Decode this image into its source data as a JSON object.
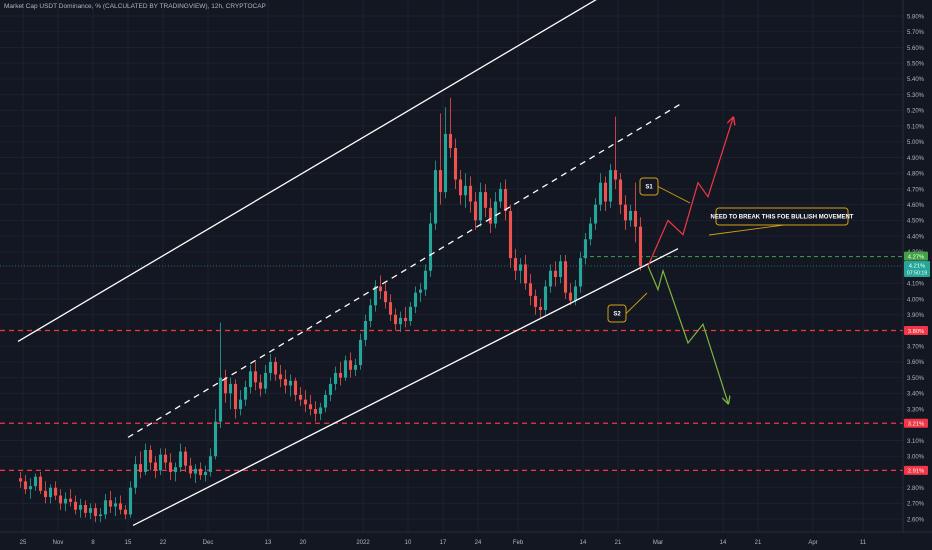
{
  "header": {
    "title": "Market Cap USDT Dominance, % (CALCULATED BY TRADINGVIEW), 12h, CRYPTOCAP"
  },
  "colors": {
    "background": "#131722",
    "up": "#26a69a",
    "down": "#ef5350",
    "channel": "#ffffff",
    "support_dash": "#f23645",
    "bull_path": "#f23645",
    "bear_path": "#7cb342",
    "label_border": "#d4a017",
    "price_line": "#26a69a",
    "price_badge": "#26a69a",
    "axis_text": "#b2b5be"
  },
  "chart_data": {
    "type": "candlestick",
    "title": "Market Cap USDT Dominance, % (CALCULATED BY TRADINGVIEW), 12h, CRYPTOCAP",
    "unit": "%",
    "ylim": [
      2.55,
      5.87
    ],
    "x_range": [
      "2021-10-24",
      "2022-03-21"
    ],
    "y_ticks": [
      "5.80%",
      "5.70%",
      "5.60%",
      "5.50%",
      "5.40%",
      "5.30%",
      "5.20%",
      "5.10%",
      "5.00%",
      "4.90%",
      "4.80%",
      "4.70%",
      "4.60%",
      "4.50%",
      "4.40%",
      "4.30%",
      "4.10%",
      "4.00%",
      "3.90%",
      "3.70%",
      "3.60%",
      "3.50%",
      "3.40%",
      "3.30%",
      "3.10%",
      "3.00%",
      "2.80%",
      "2.70%",
      "2.60%"
    ],
    "x_ticks": [
      "25",
      "Nov",
      "8",
      "15",
      "22",
      "Dec",
      "13",
      "20",
      "2022",
      "10",
      "17",
      "24",
      "Feb",
      "14",
      "21",
      "Mar",
      "14",
      "21",
      "Apr",
      "11",
      "18"
    ],
    "price_levels": [
      {
        "label": "3.80%",
        "value": 3.8
      },
      {
        "label": "3.21%",
        "value": 3.21
      },
      {
        "label": "2.91%",
        "value": 2.91
      }
    ],
    "current_price": {
      "label": "4.21%",
      "value": 4.21,
      "countdown": "07:50:19"
    },
    "marker_level": {
      "label": "4.27%",
      "value": 4.27
    },
    "channel": {
      "upper": [
        {
          "x": "2021-10-24",
          "y": 3.73
        },
        {
          "x": "2022-02-18",
          "y": 5.93
        }
      ],
      "middle": [
        {
          "x": "2021-11-15",
          "y": 3.12
        },
        {
          "x": "2022-03-06",
          "y": 5.25
        }
      ],
      "lower": [
        {
          "x": "2021-11-16",
          "y": 2.56
        },
        {
          "x": "2022-03-05",
          "y": 4.32
        }
      ]
    },
    "scenario_up": [
      {
        "x": "2022-02-27",
        "y": 4.21
      },
      {
        "x": "2022-03-03",
        "y": 4.5
      },
      {
        "x": "2022-03-06",
        "y": 4.41
      },
      {
        "x": "2022-03-09",
        "y": 4.74
      },
      {
        "x": "2022-03-11",
        "y": 4.65
      },
      {
        "x": "2022-03-16",
        "y": 5.15
      }
    ],
    "scenario_down": [
      {
        "x": "2022-02-27",
        "y": 4.21
      },
      {
        "x": "2022-03-01",
        "y": 4.06
      },
      {
        "x": "2022-03-02",
        "y": 4.18
      },
      {
        "x": "2022-03-07",
        "y": 3.72
      },
      {
        "x": "2022-03-10",
        "y": 3.84
      },
      {
        "x": "2022-03-15",
        "y": 3.34
      }
    ],
    "annotations": [
      {
        "id": "s1",
        "text": "S1"
      },
      {
        "id": "s2",
        "text": "S2"
      },
      {
        "id": "break",
        "text": "NEED TO BREAK THIS FOE BULLISH MOVEMENT"
      }
    ],
    "candles": [
      {
        "t": "2021-10-24",
        "o": 2.86,
        "h": 2.9,
        "l": 2.8,
        "c": 2.84
      },
      {
        "t": "2021-10-25",
        "o": 2.84,
        "h": 2.88,
        "l": 2.76,
        "c": 2.79
      },
      {
        "t": "2021-10-26",
        "o": 2.79,
        "h": 2.86,
        "l": 2.73,
        "c": 2.81
      },
      {
        "t": "2021-10-27",
        "o": 2.81,
        "h": 2.89,
        "l": 2.78,
        "c": 2.87
      },
      {
        "t": "2021-10-28",
        "o": 2.87,
        "h": 2.9,
        "l": 2.76,
        "c": 2.78
      },
      {
        "t": "2021-10-29",
        "o": 2.78,
        "h": 2.84,
        "l": 2.7,
        "c": 2.74
      },
      {
        "t": "2021-10-30",
        "o": 2.74,
        "h": 2.82,
        "l": 2.7,
        "c": 2.8
      },
      {
        "t": "2021-10-31",
        "o": 2.8,
        "h": 2.84,
        "l": 2.72,
        "c": 2.75
      },
      {
        "t": "2021-11-01",
        "o": 2.75,
        "h": 2.79,
        "l": 2.66,
        "c": 2.7
      },
      {
        "t": "2021-11-02",
        "o": 2.7,
        "h": 2.77,
        "l": 2.65,
        "c": 2.73
      },
      {
        "t": "2021-11-03",
        "o": 2.73,
        "h": 2.79,
        "l": 2.68,
        "c": 2.71
      },
      {
        "t": "2021-11-04",
        "o": 2.71,
        "h": 2.75,
        "l": 2.63,
        "c": 2.66
      },
      {
        "t": "2021-11-05",
        "o": 2.66,
        "h": 2.73,
        "l": 2.61,
        "c": 2.69
      },
      {
        "t": "2021-11-06",
        "o": 2.69,
        "h": 2.72,
        "l": 2.61,
        "c": 2.64
      },
      {
        "t": "2021-11-07",
        "o": 2.64,
        "h": 2.7,
        "l": 2.6,
        "c": 2.67
      },
      {
        "t": "2021-11-08",
        "o": 2.67,
        "h": 2.7,
        "l": 2.58,
        "c": 2.62
      },
      {
        "t": "2021-11-09",
        "o": 2.62,
        "h": 2.67,
        "l": 2.58,
        "c": 2.63
      },
      {
        "t": "2021-11-10",
        "o": 2.63,
        "h": 2.76,
        "l": 2.6,
        "c": 2.72
      },
      {
        "t": "2021-11-11",
        "o": 2.72,
        "h": 2.78,
        "l": 2.64,
        "c": 2.68
      },
      {
        "t": "2021-11-12",
        "o": 2.68,
        "h": 2.74,
        "l": 2.62,
        "c": 2.7
      },
      {
        "t": "2021-11-13",
        "o": 2.7,
        "h": 2.75,
        "l": 2.63,
        "c": 2.66
      },
      {
        "t": "2021-11-14",
        "o": 2.66,
        "h": 2.69,
        "l": 2.6,
        "c": 2.63
      },
      {
        "t": "2021-11-15",
        "o": 2.63,
        "h": 2.84,
        "l": 2.61,
        "c": 2.8
      },
      {
        "t": "2021-11-16",
        "o": 2.8,
        "h": 3.0,
        "l": 2.76,
        "c": 2.95
      },
      {
        "t": "2021-11-17",
        "o": 2.95,
        "h": 3.03,
        "l": 2.86,
        "c": 2.9
      },
      {
        "t": "2021-11-18",
        "o": 2.9,
        "h": 3.08,
        "l": 2.88,
        "c": 3.04
      },
      {
        "t": "2021-11-19",
        "o": 3.04,
        "h": 3.07,
        "l": 2.91,
        "c": 2.96
      },
      {
        "t": "2021-11-20",
        "o": 2.96,
        "h": 3.0,
        "l": 2.86,
        "c": 2.91
      },
      {
        "t": "2021-11-21",
        "o": 2.91,
        "h": 3.05,
        "l": 2.88,
        "c": 3.01
      },
      {
        "t": "2021-11-22",
        "o": 3.01,
        "h": 3.05,
        "l": 2.92,
        "c": 2.96
      },
      {
        "t": "2021-11-23",
        "o": 2.96,
        "h": 3.02,
        "l": 2.85,
        "c": 2.9
      },
      {
        "t": "2021-11-24",
        "o": 2.9,
        "h": 2.96,
        "l": 2.84,
        "c": 2.93
      },
      {
        "t": "2021-11-25",
        "o": 2.93,
        "h": 3.08,
        "l": 2.9,
        "c": 3.03
      },
      {
        "t": "2021-11-26",
        "o": 3.03,
        "h": 3.06,
        "l": 2.9,
        "c": 2.94
      },
      {
        "t": "2021-11-27",
        "o": 2.94,
        "h": 2.99,
        "l": 2.86,
        "c": 2.89
      },
      {
        "t": "2021-11-28",
        "o": 2.89,
        "h": 2.95,
        "l": 2.83,
        "c": 2.92
      },
      {
        "t": "2021-11-29",
        "o": 2.92,
        "h": 2.96,
        "l": 2.85,
        "c": 2.88
      },
      {
        "t": "2021-11-30",
        "o": 2.88,
        "h": 2.94,
        "l": 2.84,
        "c": 2.9
      },
      {
        "t": "2021-12-01",
        "o": 2.9,
        "h": 3.05,
        "l": 2.87,
        "c": 3.0
      },
      {
        "t": "2021-12-02",
        "o": 3.0,
        "h": 3.3,
        "l": 2.98,
        "c": 3.22
      },
      {
        "t": "2021-12-03",
        "o": 3.22,
        "h": 3.85,
        "l": 3.18,
        "c": 3.5
      },
      {
        "t": "2021-12-04",
        "o": 3.5,
        "h": 3.55,
        "l": 3.34,
        "c": 3.4
      },
      {
        "t": "2021-12-05",
        "o": 3.4,
        "h": 3.5,
        "l": 3.3,
        "c": 3.46
      },
      {
        "t": "2021-12-06",
        "o": 3.46,
        "h": 3.49,
        "l": 3.24,
        "c": 3.3
      },
      {
        "t": "2021-12-07",
        "o": 3.3,
        "h": 3.42,
        "l": 3.26,
        "c": 3.36
      },
      {
        "t": "2021-12-08",
        "o": 3.36,
        "h": 3.48,
        "l": 3.32,
        "c": 3.44
      },
      {
        "t": "2021-12-09",
        "o": 3.44,
        "h": 3.58,
        "l": 3.4,
        "c": 3.54
      },
      {
        "t": "2021-12-10",
        "o": 3.54,
        "h": 3.6,
        "l": 3.42,
        "c": 3.47
      },
      {
        "t": "2021-12-11",
        "o": 3.47,
        "h": 3.52,
        "l": 3.38,
        "c": 3.43
      },
      {
        "t": "2021-12-12",
        "o": 3.43,
        "h": 3.58,
        "l": 3.4,
        "c": 3.53
      },
      {
        "t": "2021-12-13",
        "o": 3.53,
        "h": 3.65,
        "l": 3.48,
        "c": 3.6
      },
      {
        "t": "2021-12-14",
        "o": 3.6,
        "h": 3.63,
        "l": 3.48,
        "c": 3.52
      },
      {
        "t": "2021-12-15",
        "o": 3.52,
        "h": 3.58,
        "l": 3.44,
        "c": 3.49
      },
      {
        "t": "2021-12-16",
        "o": 3.49,
        "h": 3.55,
        "l": 3.4,
        "c": 3.45
      },
      {
        "t": "2021-12-17",
        "o": 3.45,
        "h": 3.52,
        "l": 3.38,
        "c": 3.48
      },
      {
        "t": "2021-12-18",
        "o": 3.48,
        "h": 3.5,
        "l": 3.35,
        "c": 3.39
      },
      {
        "t": "2021-12-19",
        "o": 3.39,
        "h": 3.44,
        "l": 3.32,
        "c": 3.36
      },
      {
        "t": "2021-12-20",
        "o": 3.36,
        "h": 3.42,
        "l": 3.28,
        "c": 3.33
      },
      {
        "t": "2021-12-21",
        "o": 3.33,
        "h": 3.39,
        "l": 3.26,
        "c": 3.3
      },
      {
        "t": "2021-12-22",
        "o": 3.3,
        "h": 3.35,
        "l": 3.22,
        "c": 3.27
      },
      {
        "t": "2021-12-23",
        "o": 3.27,
        "h": 3.34,
        "l": 3.23,
        "c": 3.31
      },
      {
        "t": "2021-12-24",
        "o": 3.31,
        "h": 3.42,
        "l": 3.28,
        "c": 3.39
      },
      {
        "t": "2021-12-25",
        "o": 3.39,
        "h": 3.5,
        "l": 3.35,
        "c": 3.46
      },
      {
        "t": "2021-12-26",
        "o": 3.46,
        "h": 3.57,
        "l": 3.42,
        "c": 3.53
      },
      {
        "t": "2021-12-27",
        "o": 3.53,
        "h": 3.6,
        "l": 3.45,
        "c": 3.5
      },
      {
        "t": "2021-12-28",
        "o": 3.5,
        "h": 3.64,
        "l": 3.48,
        "c": 3.61
      },
      {
        "t": "2021-12-29",
        "o": 3.61,
        "h": 3.66,
        "l": 3.5,
        "c": 3.55
      },
      {
        "t": "2021-12-30",
        "o": 3.55,
        "h": 3.62,
        "l": 3.51,
        "c": 3.58
      },
      {
        "t": "2021-12-31",
        "o": 3.58,
        "h": 3.78,
        "l": 3.55,
        "c": 3.74
      },
      {
        "t": "2022-01-01",
        "o": 3.74,
        "h": 3.9,
        "l": 3.7,
        "c": 3.86
      },
      {
        "t": "2022-01-02",
        "o": 3.86,
        "h": 4.0,
        "l": 3.82,
        "c": 3.96
      },
      {
        "t": "2022-01-03",
        "o": 3.96,
        "h": 4.12,
        "l": 3.92,
        "c": 4.08
      },
      {
        "t": "2022-01-04",
        "o": 4.08,
        "h": 4.15,
        "l": 4.0,
        "c": 4.05
      },
      {
        "t": "2022-01-05",
        "o": 4.05,
        "h": 4.1,
        "l": 3.94,
        "c": 3.98
      },
      {
        "t": "2022-01-06",
        "o": 3.98,
        "h": 4.03,
        "l": 3.86,
        "c": 3.9
      },
      {
        "t": "2022-01-07",
        "o": 3.9,
        "h": 3.94,
        "l": 3.8,
        "c": 3.84
      },
      {
        "t": "2022-01-08",
        "o": 3.84,
        "h": 3.92,
        "l": 3.79,
        "c": 3.88
      },
      {
        "t": "2022-01-09",
        "o": 3.88,
        "h": 3.95,
        "l": 3.82,
        "c": 3.86
      },
      {
        "t": "2022-01-10",
        "o": 3.86,
        "h": 3.98,
        "l": 3.83,
        "c": 3.95
      },
      {
        "t": "2022-01-11",
        "o": 3.95,
        "h": 4.08,
        "l": 3.91,
        "c": 4.04
      },
      {
        "t": "2022-01-12",
        "o": 4.04,
        "h": 4.1,
        "l": 3.98,
        "c": 4.06
      },
      {
        "t": "2022-01-13",
        "o": 4.06,
        "h": 4.22,
        "l": 4.02,
        "c": 4.18
      },
      {
        "t": "2022-01-14",
        "o": 4.18,
        "h": 4.55,
        "l": 4.14,
        "c": 4.48
      },
      {
        "t": "2022-01-15",
        "o": 4.48,
        "h": 4.88,
        "l": 4.44,
        "c": 4.82
      },
      {
        "t": "2022-01-16",
        "o": 4.82,
        "h": 5.18,
        "l": 4.6,
        "c": 4.68
      },
      {
        "t": "2022-01-17",
        "o": 4.68,
        "h": 5.22,
        "l": 4.64,
        "c": 5.05
      },
      {
        "t": "2022-01-18",
        "o": 5.05,
        "h": 5.28,
        "l": 4.9,
        "c": 4.96
      },
      {
        "t": "2022-01-19",
        "o": 4.96,
        "h": 5.02,
        "l": 4.7,
        "c": 4.76
      },
      {
        "t": "2022-01-20",
        "o": 4.76,
        "h": 4.82,
        "l": 4.6,
        "c": 4.66
      },
      {
        "t": "2022-01-21",
        "o": 4.66,
        "h": 4.8,
        "l": 4.58,
        "c": 4.72
      },
      {
        "t": "2022-01-22",
        "o": 4.72,
        "h": 4.78,
        "l": 4.55,
        "c": 4.62
      },
      {
        "t": "2022-01-23",
        "o": 4.62,
        "h": 4.68,
        "l": 4.44,
        "c": 4.5
      },
      {
        "t": "2022-01-24",
        "o": 4.5,
        "h": 4.74,
        "l": 4.46,
        "c": 4.68
      },
      {
        "t": "2022-01-25",
        "o": 4.68,
        "h": 4.73,
        "l": 4.52,
        "c": 4.58
      },
      {
        "t": "2022-01-26",
        "o": 4.58,
        "h": 4.64,
        "l": 4.42,
        "c": 4.48
      },
      {
        "t": "2022-01-27",
        "o": 4.48,
        "h": 4.68,
        "l": 4.45,
        "c": 4.62
      },
      {
        "t": "2022-01-28",
        "o": 4.62,
        "h": 4.74,
        "l": 4.58,
        "c": 4.7
      },
      {
        "t": "2022-01-29",
        "o": 4.7,
        "h": 4.76,
        "l": 4.5,
        "c": 4.56
      },
      {
        "t": "2022-01-30",
        "o": 4.56,
        "h": 4.6,
        "l": 4.2,
        "c": 4.26
      },
      {
        "t": "2022-01-31",
        "o": 4.26,
        "h": 4.32,
        "l": 4.12,
        "c": 4.18
      },
      {
        "t": "2022-02-01",
        "o": 4.18,
        "h": 4.26,
        "l": 4.1,
        "c": 4.22
      },
      {
        "t": "2022-02-02",
        "o": 4.22,
        "h": 4.28,
        "l": 4.06,
        "c": 4.1
      },
      {
        "t": "2022-02-03",
        "o": 4.1,
        "h": 4.16,
        "l": 3.96,
        "c": 4.02
      },
      {
        "t": "2022-02-04",
        "o": 4.02,
        "h": 4.06,
        "l": 3.9,
        "c": 3.95
      },
      {
        "t": "2022-02-05",
        "o": 3.95,
        "h": 4.0,
        "l": 3.88,
        "c": 3.93
      },
      {
        "t": "2022-02-06",
        "o": 3.93,
        "h": 4.12,
        "l": 3.9,
        "c": 4.08
      },
      {
        "t": "2022-02-07",
        "o": 4.08,
        "h": 4.22,
        "l": 4.04,
        "c": 4.18
      },
      {
        "t": "2022-02-08",
        "o": 4.18,
        "h": 4.24,
        "l": 4.08,
        "c": 4.14
      },
      {
        "t": "2022-02-09",
        "o": 4.14,
        "h": 4.28,
        "l": 4.1,
        "c": 4.24
      },
      {
        "t": "2022-02-10",
        "o": 4.24,
        "h": 4.28,
        "l": 4.0,
        "c": 4.04
      },
      {
        "t": "2022-02-11",
        "o": 4.04,
        "h": 4.1,
        "l": 3.96,
        "c": 3.99
      },
      {
        "t": "2022-02-12",
        "o": 3.99,
        "h": 4.12,
        "l": 3.96,
        "c": 4.08
      },
      {
        "t": "2022-02-13",
        "o": 4.08,
        "h": 4.3,
        "l": 4.04,
        "c": 4.26
      },
      {
        "t": "2022-02-14",
        "o": 4.26,
        "h": 4.42,
        "l": 4.22,
        "c": 4.38
      },
      {
        "t": "2022-02-15",
        "o": 4.38,
        "h": 4.52,
        "l": 4.34,
        "c": 4.48
      },
      {
        "t": "2022-02-16",
        "o": 4.48,
        "h": 4.64,
        "l": 4.44,
        "c": 4.6
      },
      {
        "t": "2022-02-17",
        "o": 4.6,
        "h": 4.8,
        "l": 4.56,
        "c": 4.74
      },
      {
        "t": "2022-02-18",
        "o": 4.74,
        "h": 4.78,
        "l": 4.56,
        "c": 4.62
      },
      {
        "t": "2022-02-19",
        "o": 4.62,
        "h": 4.86,
        "l": 4.58,
        "c": 4.82
      },
      {
        "t": "2022-02-20",
        "o": 4.82,
        "h": 5.16,
        "l": 4.7,
        "c": 4.76
      },
      {
        "t": "2022-02-21",
        "o": 4.76,
        "h": 4.8,
        "l": 4.54,
        "c": 4.6
      },
      {
        "t": "2022-02-22",
        "o": 4.6,
        "h": 4.66,
        "l": 4.44,
        "c": 4.5
      },
      {
        "t": "2022-02-23",
        "o": 4.5,
        "h": 4.6,
        "l": 4.46,
        "c": 4.56
      },
      {
        "t": "2022-02-24",
        "o": 4.56,
        "h": 4.74,
        "l": 4.36,
        "c": 4.46
      },
      {
        "t": "2022-02-25",
        "o": 4.46,
        "h": 4.52,
        "l": 4.18,
        "c": 4.21
      }
    ]
  }
}
